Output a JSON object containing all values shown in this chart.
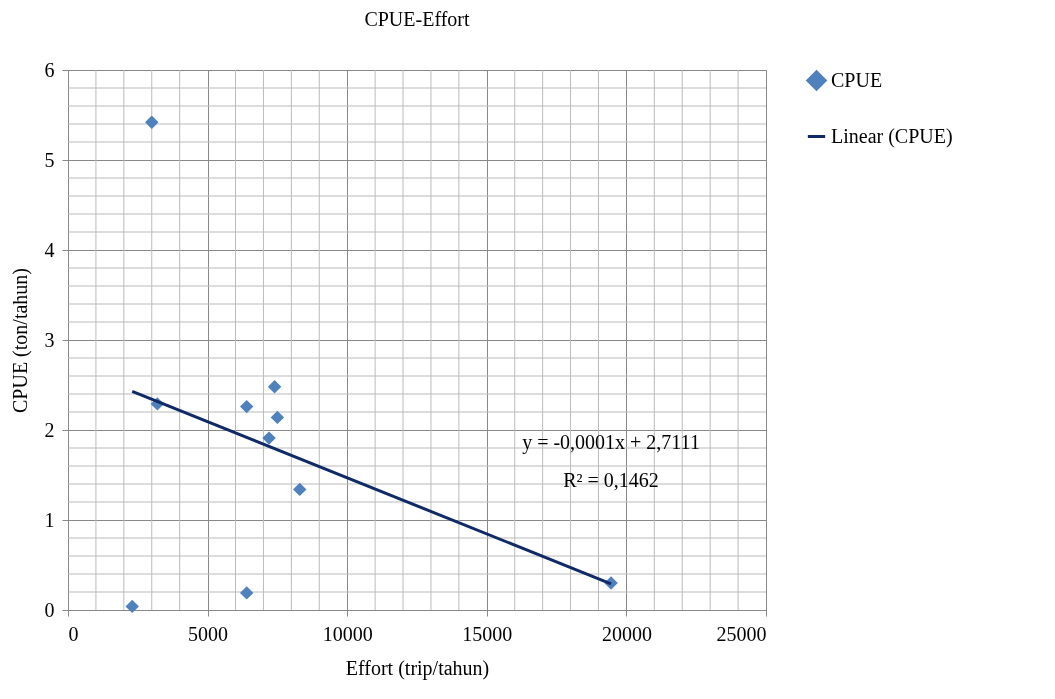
{
  "chart_data": {
    "type": "scatter",
    "title": "CPUE-Effort",
    "xlabel": "Effort (trip/tahun)",
    "ylabel": "CPUE (ton/tahun)",
    "series": [
      {
        "name": "CPUE",
        "marker": "diamond",
        "color": "#4f81bd",
        "x": [
          2300,
          3000,
          3200,
          6400,
          6400,
          7400,
          7500,
          7200,
          8300,
          19450
        ],
        "values": [
          0.04,
          5.42,
          2.29,
          2.26,
          0.19,
          2.48,
          2.14,
          1.91,
          1.34,
          0.3
        ]
      },
      {
        "name": "Linear (CPUE)",
        "type": "line",
        "color": "#0f2a66",
        "x": [
          2300,
          19450
        ],
        "values": [
          2.43,
          0.29
        ]
      }
    ],
    "xlim": [
      0,
      25000
    ],
    "xticks": [
      0,
      5000,
      10000,
      15000,
      20000,
      25000
    ],
    "ylim": [
      0,
      6
    ],
    "yticks": [
      0,
      1,
      2,
      3,
      4,
      5,
      6
    ],
    "grid": true,
    "legend": "right",
    "annotations": [
      "y = -0,0001x + 2,7111",
      "R² = 0,1462"
    ]
  }
}
